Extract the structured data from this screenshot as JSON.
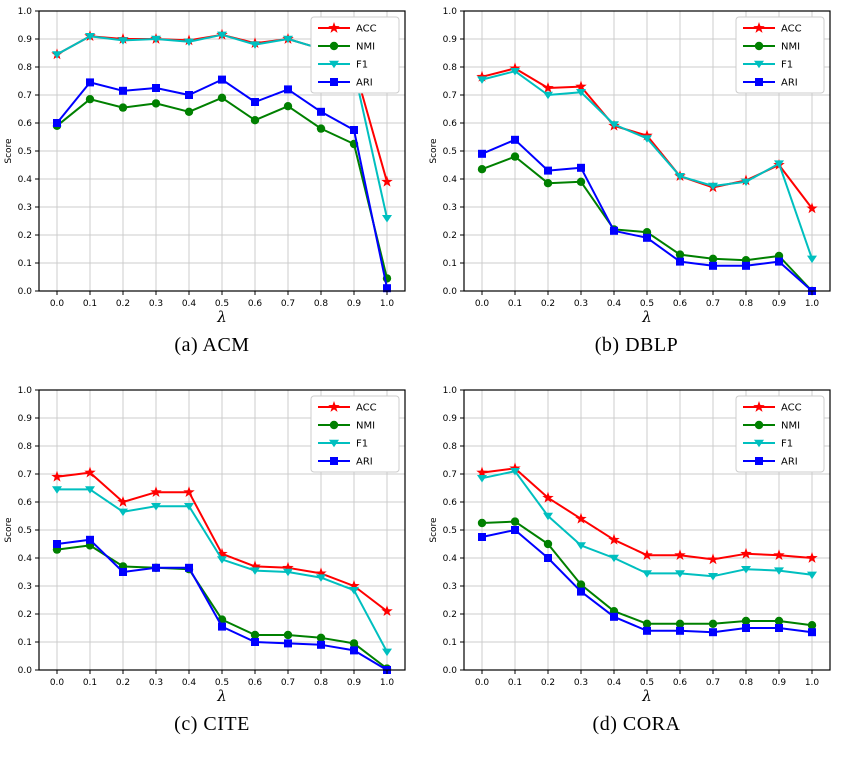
{
  "figure": {
    "ylabel": "Score",
    "xlabel": "λ",
    "legend_entries": [
      "ACC",
      "NMI",
      "F1",
      "ARI"
    ],
    "grid_color": "#cccccc",
    "axis_color": "#000000",
    "legend_border_color": "#cccccc",
    "series_colors": {
      "ACC": "#ff0000",
      "NMI": "#008000",
      "F1": "#00bfbf",
      "ARI": "#0000ff"
    },
    "series_markers": {
      "ACC": "star",
      "NMI": "circle",
      "F1": "triangle-down",
      "ARI": "square"
    }
  },
  "chart_data": [
    {
      "type": "line",
      "title": "(a) ACM",
      "xlabel": "λ",
      "ylabel": "Score",
      "x": [
        0.0,
        0.1,
        0.2,
        0.3,
        0.4,
        0.5,
        0.6,
        0.7,
        0.8,
        0.9,
        1.0
      ],
      "xticks": [
        "0.0",
        "0.1",
        "0.2",
        "0.3",
        "0.4",
        "0.5",
        "0.6",
        "0.7",
        "0.8",
        "0.9",
        "1.0"
      ],
      "ylim": [
        0.0,
        1.0
      ],
      "yticks": [
        "0.0",
        "0.1",
        "0.2",
        "0.3",
        "0.4",
        "0.5",
        "0.6",
        "0.7",
        "0.8",
        "0.9",
        "1.0"
      ],
      "grid": true,
      "legend_position": "upper right",
      "series": [
        {
          "name": "ACC",
          "color": "#ff0000",
          "marker": "star",
          "values": [
            0.845,
            0.91,
            0.9,
            0.9,
            0.895,
            0.915,
            0.885,
            0.9,
            0.865,
            0.805,
            0.39
          ]
        },
        {
          "name": "NMI",
          "color": "#008000",
          "marker": "circle",
          "values": [
            0.59,
            0.685,
            0.655,
            0.67,
            0.64,
            0.69,
            0.61,
            0.66,
            0.58,
            0.525,
            0.045
          ]
        },
        {
          "name": "F1",
          "color": "#00bfbf",
          "marker": "triangle-down",
          "values": [
            0.845,
            0.91,
            0.895,
            0.9,
            0.89,
            0.915,
            0.88,
            0.9,
            0.865,
            0.79,
            0.26
          ]
        },
        {
          "name": "ARI",
          "color": "#0000ff",
          "marker": "square",
          "values": [
            0.6,
            0.745,
            0.715,
            0.725,
            0.7,
            0.755,
            0.675,
            0.72,
            0.64,
            0.575,
            0.01
          ]
        }
      ]
    },
    {
      "type": "line",
      "title": "(b) DBLP",
      "xlabel": "λ",
      "ylabel": "Score",
      "x": [
        0.0,
        0.1,
        0.2,
        0.3,
        0.4,
        0.5,
        0.6,
        0.7,
        0.8,
        0.9,
        1.0
      ],
      "xticks": [
        "0.0",
        "0.1",
        "0.2",
        "0.3",
        "0.4",
        "0.5",
        "0.6",
        "0.7",
        "0.8",
        "0.9",
        "1.0"
      ],
      "ylim": [
        0.0,
        1.0
      ],
      "yticks": [
        "0.0",
        "0.1",
        "0.2",
        "0.3",
        "0.4",
        "0.5",
        "0.6",
        "0.7",
        "0.8",
        "0.9",
        "1.0"
      ],
      "grid": true,
      "legend_position": "upper right",
      "series": [
        {
          "name": "ACC",
          "color": "#ff0000",
          "marker": "star",
          "values": [
            0.765,
            0.795,
            0.725,
            0.73,
            0.59,
            0.555,
            0.41,
            0.37,
            0.395,
            0.45,
            0.295
          ]
        },
        {
          "name": "NMI",
          "color": "#008000",
          "marker": "circle",
          "values": [
            0.435,
            0.48,
            0.385,
            0.39,
            0.22,
            0.21,
            0.13,
            0.115,
            0.11,
            0.125,
            0.0
          ]
        },
        {
          "name": "F1",
          "color": "#00bfbf",
          "marker": "triangle-down",
          "values": [
            0.755,
            0.785,
            0.7,
            0.71,
            0.595,
            0.545,
            0.41,
            0.375,
            0.39,
            0.455,
            0.115
          ]
        },
        {
          "name": "ARI",
          "color": "#0000ff",
          "marker": "square",
          "values": [
            0.49,
            0.54,
            0.43,
            0.44,
            0.215,
            0.19,
            0.105,
            0.09,
            0.09,
            0.105,
            0.0
          ]
        }
      ]
    },
    {
      "type": "line",
      "title": "(c) CITE",
      "xlabel": "λ",
      "ylabel": "Score",
      "x": [
        0.0,
        0.1,
        0.2,
        0.3,
        0.4,
        0.5,
        0.6,
        0.7,
        0.8,
        0.9,
        1.0
      ],
      "xticks": [
        "0.0",
        "0.1",
        "0.2",
        "0.3",
        "0.4",
        "0.5",
        "0.6",
        "0.7",
        "0.8",
        "0.9",
        "1.0"
      ],
      "ylim": [
        0.0,
        1.0
      ],
      "yticks": [
        "0.0",
        "0.1",
        "0.2",
        "0.3",
        "0.4",
        "0.5",
        "0.6",
        "0.7",
        "0.8",
        "0.9",
        "1.0"
      ],
      "grid": true,
      "legend_position": "upper right",
      "series": [
        {
          "name": "ACC",
          "color": "#ff0000",
          "marker": "star",
          "values": [
            0.69,
            0.705,
            0.6,
            0.635,
            0.635,
            0.415,
            0.37,
            0.365,
            0.345,
            0.3,
            0.21
          ]
        },
        {
          "name": "NMI",
          "color": "#008000",
          "marker": "circle",
          "values": [
            0.43,
            0.445,
            0.37,
            0.365,
            0.36,
            0.18,
            0.125,
            0.125,
            0.115,
            0.095,
            0.005
          ]
        },
        {
          "name": "F1",
          "color": "#00bfbf",
          "marker": "triangle-down",
          "values": [
            0.645,
            0.645,
            0.565,
            0.585,
            0.585,
            0.395,
            0.355,
            0.35,
            0.33,
            0.285,
            0.065
          ]
        },
        {
          "name": "ARI",
          "color": "#0000ff",
          "marker": "square",
          "values": [
            0.45,
            0.465,
            0.35,
            0.365,
            0.365,
            0.155,
            0.1,
            0.095,
            0.09,
            0.07,
            0.0
          ]
        }
      ]
    },
    {
      "type": "line",
      "title": "(d) CORA",
      "xlabel": "λ",
      "ylabel": "Score",
      "x": [
        0.0,
        0.1,
        0.2,
        0.3,
        0.4,
        0.5,
        0.6,
        0.7,
        0.8,
        0.9,
        1.0
      ],
      "xticks": [
        "0.0",
        "0.1",
        "0.2",
        "0.3",
        "0.4",
        "0.5",
        "0.6",
        "0.7",
        "0.8",
        "0.9",
        "1.0"
      ],
      "ylim": [
        0.0,
        1.0
      ],
      "yticks": [
        "0.0",
        "0.1",
        "0.2",
        "0.3",
        "0.4",
        "0.5",
        "0.6",
        "0.7",
        "0.8",
        "0.9",
        "1.0"
      ],
      "grid": true,
      "legend_position": "upper right",
      "series": [
        {
          "name": "ACC",
          "color": "#ff0000",
          "marker": "star",
          "values": [
            0.705,
            0.72,
            0.615,
            0.54,
            0.465,
            0.41,
            0.41,
            0.395,
            0.415,
            0.41,
            0.4
          ]
        },
        {
          "name": "NMI",
          "color": "#008000",
          "marker": "circle",
          "values": [
            0.525,
            0.53,
            0.45,
            0.305,
            0.21,
            0.165,
            0.165,
            0.165,
            0.175,
            0.175,
            0.16
          ]
        },
        {
          "name": "F1",
          "color": "#00bfbf",
          "marker": "triangle-down",
          "values": [
            0.685,
            0.71,
            0.55,
            0.445,
            0.4,
            0.345,
            0.345,
            0.335,
            0.36,
            0.355,
            0.34
          ]
        },
        {
          "name": "ARI",
          "color": "#0000ff",
          "marker": "square",
          "values": [
            0.475,
            0.5,
            0.4,
            0.28,
            0.19,
            0.14,
            0.14,
            0.135,
            0.15,
            0.15,
            0.135
          ]
        }
      ]
    }
  ]
}
